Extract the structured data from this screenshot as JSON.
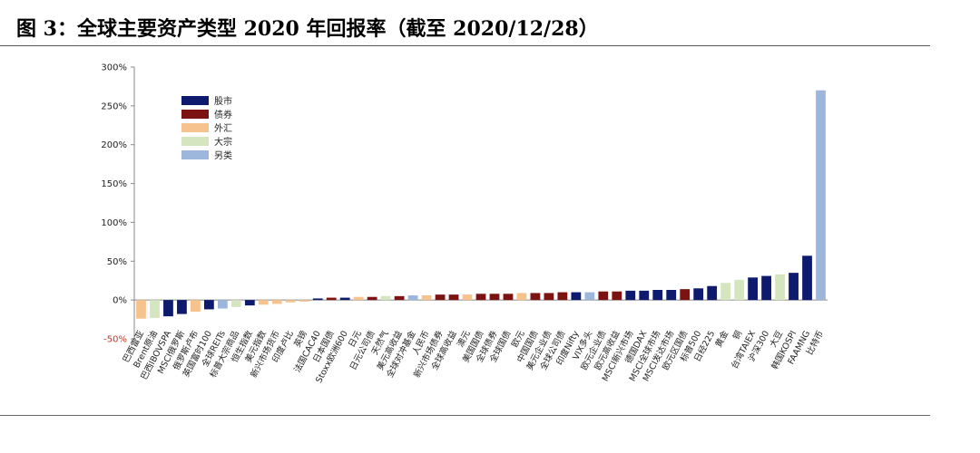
{
  "figure": {
    "title": "图 3：全球主要资产类型 2020 年回报率（截至 2020/12/28）"
  },
  "legend": [
    {
      "label": "股市",
      "color": "#0d1a6e"
    },
    {
      "label": "债券",
      "color": "#7d1212"
    },
    {
      "label": "外汇",
      "color": "#f6c28e"
    },
    {
      "label": "大宗",
      "color": "#d5e5bf"
    },
    {
      "label": "另类",
      "color": "#9db7dc"
    }
  ],
  "chart_data": {
    "type": "bar",
    "title": "",
    "xlabel": "",
    "ylabel": "",
    "ylim": [
      -50,
      300
    ],
    "yticks": [
      -50,
      0,
      50,
      100,
      150,
      200,
      250,
      300
    ],
    "ytick_labels": [
      "-50%",
      "0%",
      "50%",
      "100%",
      "150%",
      "200%",
      "250%",
      "300%"
    ],
    "legend_position": "top-left",
    "grid": false,
    "categories": [
      "巴西雷亚",
      "Brent原油",
      "巴西IBOVSPA",
      "MSCI俄罗斯",
      "俄罗斯卢布",
      "英国富时100",
      "全球REITs",
      "标普大宗商品",
      "恒生指数",
      "美元指数",
      "新兴市场货币",
      "印度卢比",
      "英镑",
      "法国CAC40",
      "日本国债",
      "Stoxx欧洲600",
      "日元",
      "日元公司债",
      "天然气",
      "美元高收益",
      "全球对冲基金",
      "人民币",
      "新兴市场债券",
      "全球高收益",
      "澳元",
      "美国国债",
      "全球债券",
      "全球国债",
      "欧元",
      "中国国债",
      "美元企业债",
      "全球公司债",
      "印度Nifty",
      "VIX多头",
      "欧元企业债",
      "欧元高收益",
      "MSCI新兴市场",
      "德国DAX",
      "MSCI全球市场",
      "MSCI发达市场",
      "欧元区国债",
      "标普500",
      "日经225",
      "黄金",
      "铜",
      "台湾TAIEX",
      "沪深300",
      "大豆",
      "韩国KOSPI",
      "FAAMNG",
      "比特币"
    ],
    "classes": [
      "外汇",
      "大宗",
      "股市",
      "股市",
      "外汇",
      "股市",
      "另类",
      "大宗",
      "股市",
      "外汇",
      "外汇",
      "外汇",
      "外汇",
      "股市",
      "债券",
      "股市",
      "外汇",
      "债券",
      "大宗",
      "债券",
      "另类",
      "外汇",
      "债券",
      "债券",
      "外汇",
      "债券",
      "债券",
      "债券",
      "外汇",
      "债券",
      "债券",
      "债券",
      "股市",
      "另类",
      "债券",
      "债券",
      "股市",
      "股市",
      "股市",
      "股市",
      "债券",
      "股市",
      "股市",
      "大宗",
      "大宗",
      "股市",
      "股市",
      "大宗",
      "股市",
      "股市",
      "另类"
    ],
    "series": [
      {
        "values": [
          -24,
          -23,
          -21,
          -18,
          -15,
          -12,
          -11,
          -9,
          -7,
          -6,
          -5,
          -3,
          -2,
          2,
          3,
          3,
          4,
          4,
          5,
          5,
          6,
          6,
          7,
          7,
          7,
          8,
          8,
          8,
          9,
          9,
          9,
          10,
          10,
          10,
          11,
          11,
          12,
          12,
          13,
          13,
          14,
          15,
          18,
          22,
          26,
          29,
          31,
          33,
          35,
          57,
          270
        ]
      }
    ]
  }
}
